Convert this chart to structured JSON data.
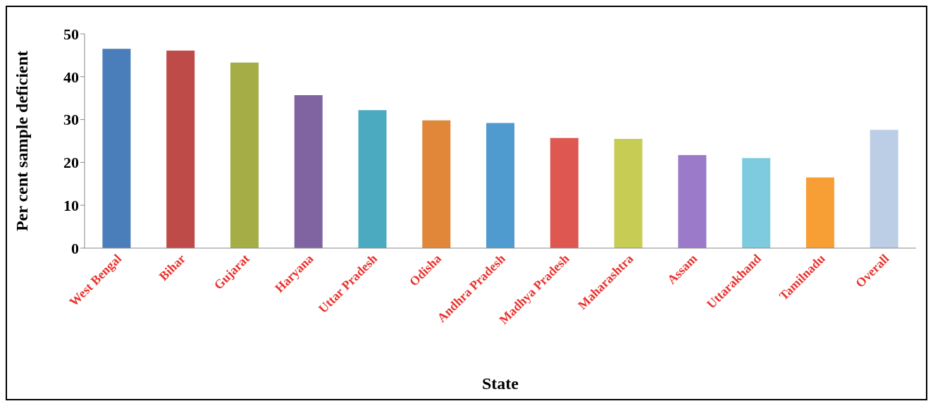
{
  "chart_data": {
    "type": "bar",
    "xlabel": "State",
    "ylabel": "Per cent  sample deficient",
    "categories": [
      "West Bengal",
      "Bihar",
      "Gujarat",
      "Haryana",
      "Uttar Pradesh",
      "Odisha",
      "Andhra Pradesh",
      "Madhya Pradesh",
      "Maharashtra",
      "Assam",
      "Uttarakhand",
      "Tamilnadu",
      "Overall"
    ],
    "values": [
      46.5,
      46.1,
      43.3,
      35.7,
      32.2,
      29.8,
      29.2,
      25.7,
      25.5,
      21.7,
      21.0,
      16.5,
      27.6
    ],
    "colors": [
      "#4a7ebb",
      "#be4b48",
      "#a5ad47",
      "#8064a2",
      "#4baac0",
      "#e0873a",
      "#4f9bd0",
      "#de5750",
      "#c7cc55",
      "#9b7bc9",
      "#7ecbe0",
      "#f79e35",
      "#bccde6"
    ],
    "ylim": [
      0,
      50
    ],
    "yticks": [
      0,
      10,
      20,
      30,
      40,
      50
    ]
  }
}
